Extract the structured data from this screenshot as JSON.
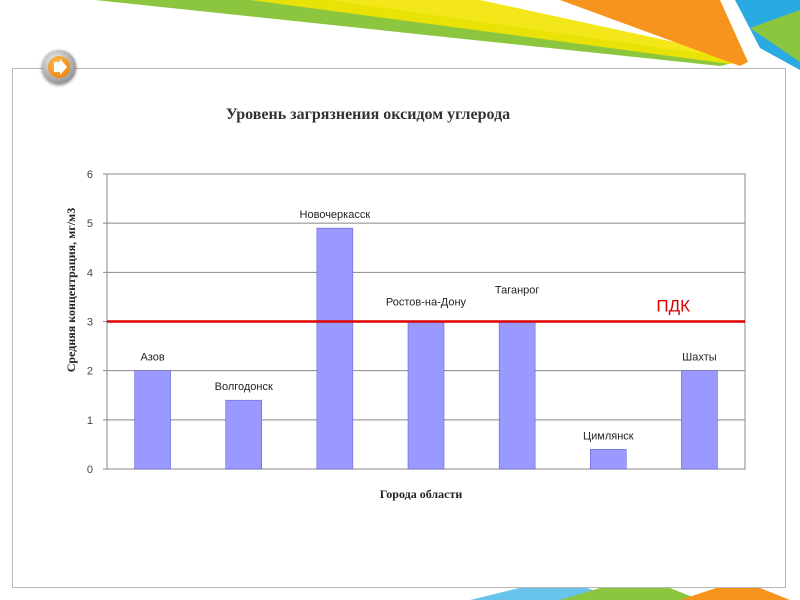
{
  "nav": {
    "icon": "arrow-right-icon"
  },
  "colors": {
    "bar_fill": "#9999ff",
    "bar_stroke": "#5555cc",
    "reference_line": "#dd0000",
    "gridline": "#888888",
    "decor_green": "#8cc63f",
    "decor_yellow": "#f2e400",
    "decor_orange": "#f7941d",
    "decor_teal": "#29abe2"
  },
  "chart_data": {
    "type": "bar",
    "title": "Уровень загрязнения оксидом углерода",
    "xlabel": "Города области",
    "ylabel": "Средняя концентрация, мг/м3",
    "categories": [
      "Азов",
      "Волгодонск",
      "Новочеркасск",
      "Ростов-на-Дону",
      "Таганрог",
      "Цимлянск",
      "Шахты"
    ],
    "values": [
      2,
      1.4,
      4.9,
      3,
      3,
      0.4,
      2
    ],
    "ylim": [
      0,
      6
    ],
    "yticks": [
      0,
      1,
      2,
      3,
      4,
      5,
      6
    ],
    "grid": true,
    "legend": "none",
    "reference_line": {
      "value": 3,
      "label": "ПДК"
    }
  }
}
